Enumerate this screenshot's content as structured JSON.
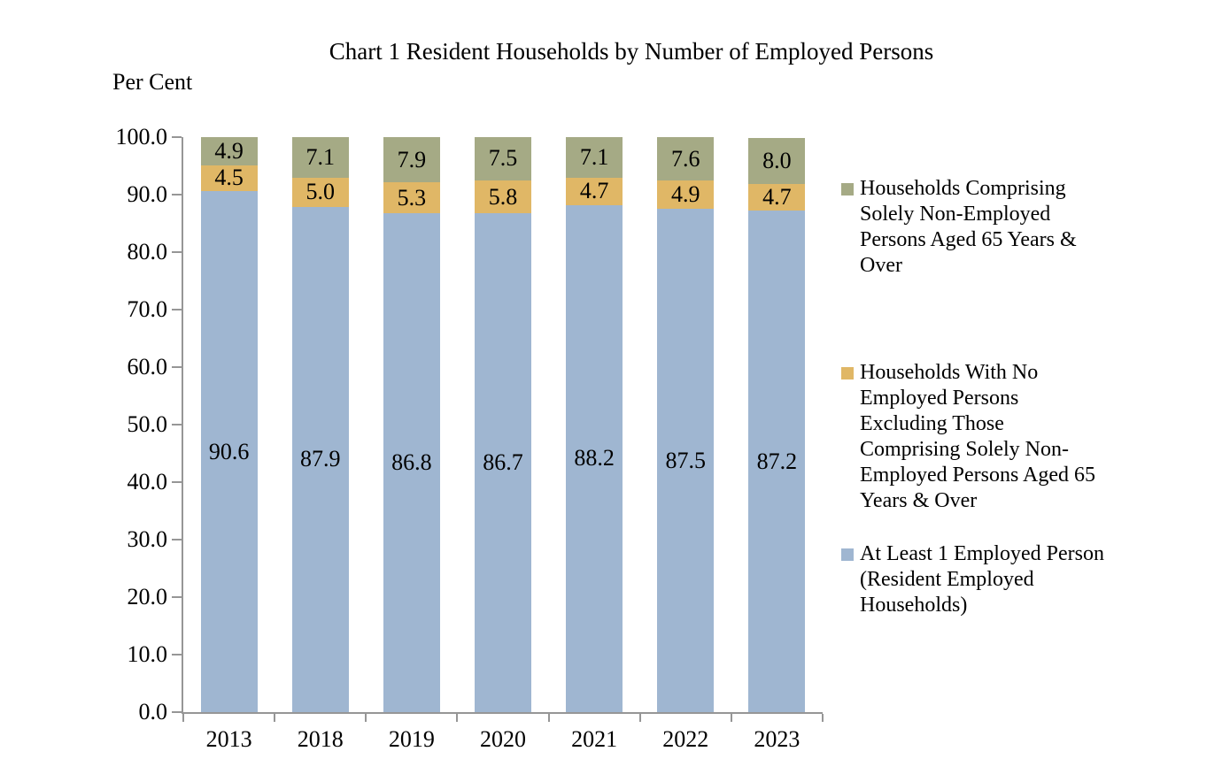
{
  "title": "Chart 1 Resident Households by Number of Employed Persons",
  "chart_data": {
    "type": "bar",
    "stacked": true,
    "title": "Chart 1 Resident Households by Number of Employed Persons",
    "ylabel": "Per Cent",
    "xlabel": "",
    "ylim": [
      0,
      100
    ],
    "grid": false,
    "legend_position": "right",
    "categories": [
      "2013",
      "2018",
      "2019",
      "2020",
      "2021",
      "2022",
      "2023"
    ],
    "yticks": [
      "100.0",
      "90.0",
      "80.0",
      "70.0",
      "60.0",
      "50.0",
      "40.0",
      "30.0",
      "20.0",
      "10.0",
      "0.0"
    ],
    "series": [
      {
        "name": "At Least 1 Employed Person (Resident Employed Households)",
        "color": "#9fb6d1",
        "values": [
          90.6,
          87.9,
          86.8,
          86.7,
          88.2,
          87.5,
          87.2
        ]
      },
      {
        "name": "Households With No Employed Persons Excluding Those Comprising Solely Non-Employed Persons Aged 65 Years & Over",
        "color": "#e0b766",
        "values": [
          4.5,
          5.0,
          5.3,
          5.8,
          4.7,
          4.9,
          4.7
        ]
      },
      {
        "name": "Households Comprising Solely Non-Employed Persons Aged 65 Years & Over",
        "color": "#a5aa85",
        "values": [
          4.9,
          7.1,
          7.9,
          7.5,
          7.1,
          7.6,
          8.0
        ]
      }
    ]
  },
  "legend": {
    "items": [
      {
        "color": "#a5aa85",
        "lines": [
          "Households Comprising",
          "Solely Non-Employed",
          "Persons Aged 65 Years &",
          "Over"
        ]
      },
      {
        "color": "#e0b766",
        "lines": [
          "Households With No",
          "Employed Persons",
          "Excluding Those",
          "Comprising Solely Non-",
          "Employed Persons Aged 65",
          "Years & Over"
        ]
      },
      {
        "color": "#9fb6d1",
        "lines": [
          "At Least 1 Employed Person",
          "(Resident Employed",
          "Households)"
        ]
      }
    ]
  },
  "colors": {
    "axis": "#969696"
  }
}
